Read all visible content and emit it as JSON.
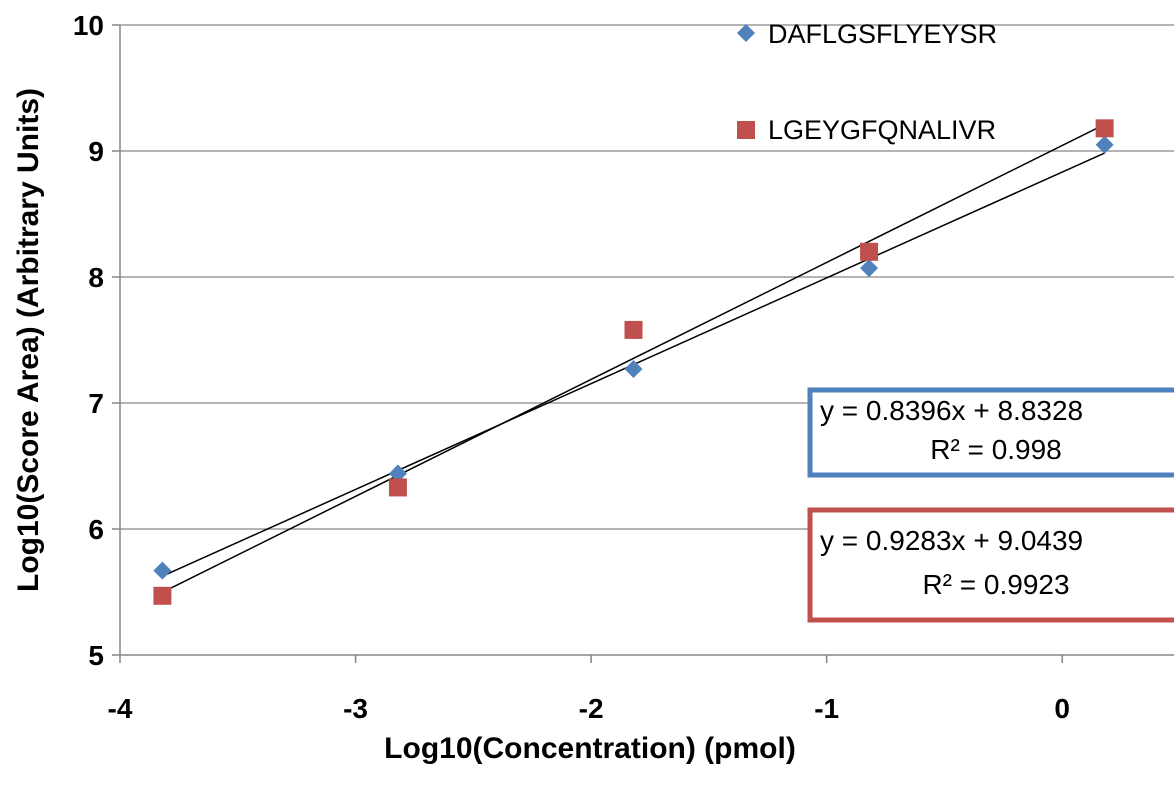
{
  "chart_data": {
    "type": "scatter",
    "title": "",
    "xlabel": "Log10(Concentration) (pmol)",
    "ylabel": "Log10(Score Area) (Arbitrary Units)",
    "xlim": [
      -4,
      0.5
    ],
    "ylim": [
      5,
      10
    ],
    "x_ticks": [
      "-4",
      "-3",
      "-2",
      "-1",
      "0"
    ],
    "y_ticks": [
      "5",
      "6",
      "7",
      "8",
      "9",
      "10"
    ],
    "x_tick_values": [
      -4,
      -3,
      -2,
      -1,
      0
    ],
    "y_tick_values": [
      5,
      6,
      7,
      8,
      9,
      10
    ],
    "grid": "horizontal",
    "legend_position": "top-right",
    "series": [
      {
        "name": "DAFLGSFLYEYSR",
        "marker": "diamond",
        "color": "#4F81BD",
        "x": [
          -3.82,
          -2.82,
          -1.82,
          -0.82,
          0.18
        ],
        "y": [
          5.67,
          6.44,
          7.27,
          8.07,
          9.05
        ],
        "trendline": {
          "slope": 0.8396,
          "intercept": 8.8328
        },
        "equation": "y = 0.8396x + 8.8328",
        "r2": "R² = 0.998"
      },
      {
        "name": "LGEYGFQNALIVR",
        "marker": "square",
        "color": "#C0504D",
        "x": [
          -3.82,
          -2.82,
          -1.82,
          -0.82,
          0.18
        ],
        "y": [
          5.47,
          6.33,
          7.58,
          8.2,
          9.18
        ],
        "trendline": {
          "slope": 0.9283,
          "intercept": 9.0439
        },
        "equation": "y = 0.9283x + 9.0439",
        "r2": "R² = 0.9923"
      }
    ]
  }
}
